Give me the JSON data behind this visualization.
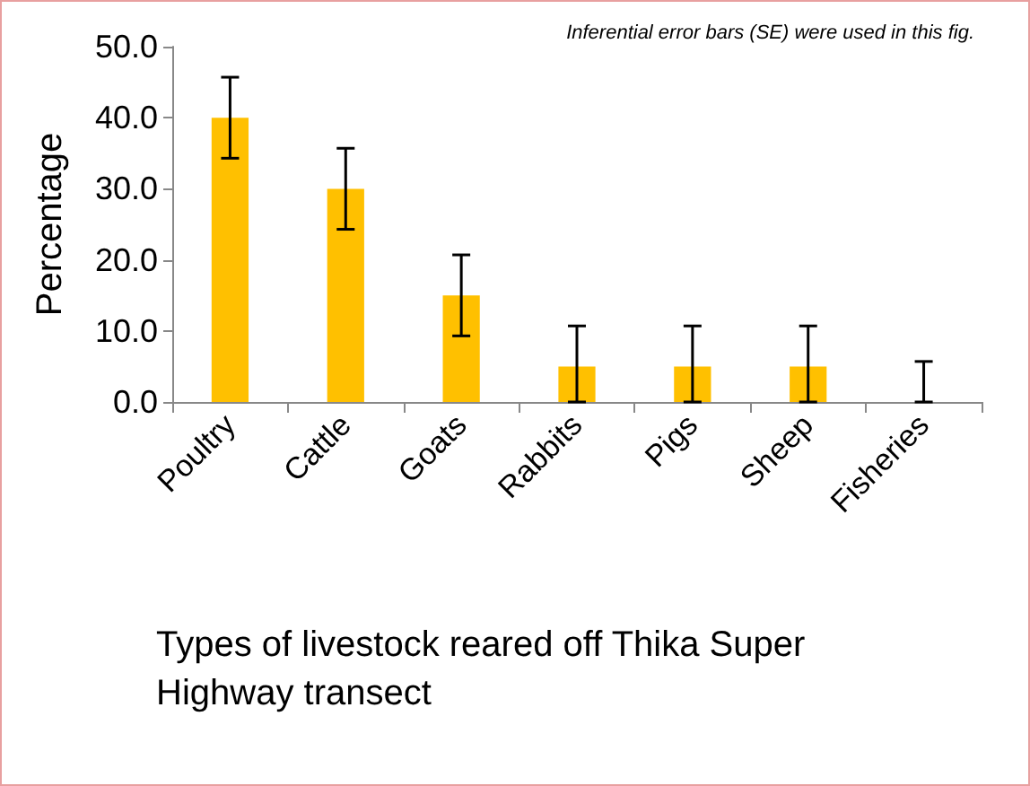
{
  "chart_data": {
    "type": "bar",
    "xlabel": "Types of livestock reared off Thika Super Highway transect",
    "ylabel": "Percentage",
    "annotations": [
      "Inferential error bars (SE) were used in this fig."
    ],
    "categories": [
      "Poultry",
      "Cattle",
      "Goats",
      "Rabbits",
      "Pigs",
      "Sheep",
      "Fisheries"
    ],
    "values": [
      40,
      30,
      15,
      5,
      5,
      5,
      0
    ],
    "errors": [
      5.7,
      5.7,
      5.7,
      [
        0,
        10.7
      ],
      [
        0,
        10.7
      ],
      [
        0,
        10.7
      ],
      [
        0,
        5.7
      ]
    ],
    "color": "#ffc000",
    "ylim": [
      0,
      50
    ],
    "yticks": [
      {
        "value": 0,
        "label": "0.0"
      },
      {
        "value": 10,
        "label": "10.0"
      },
      {
        "value": 20,
        "label": "20.0"
      },
      {
        "value": 30,
        "label": "30.0"
      },
      {
        "value": 40,
        "label": "40.0"
      },
      {
        "value": 50,
        "label": "50.0"
      }
    ],
    "grid": false
  }
}
